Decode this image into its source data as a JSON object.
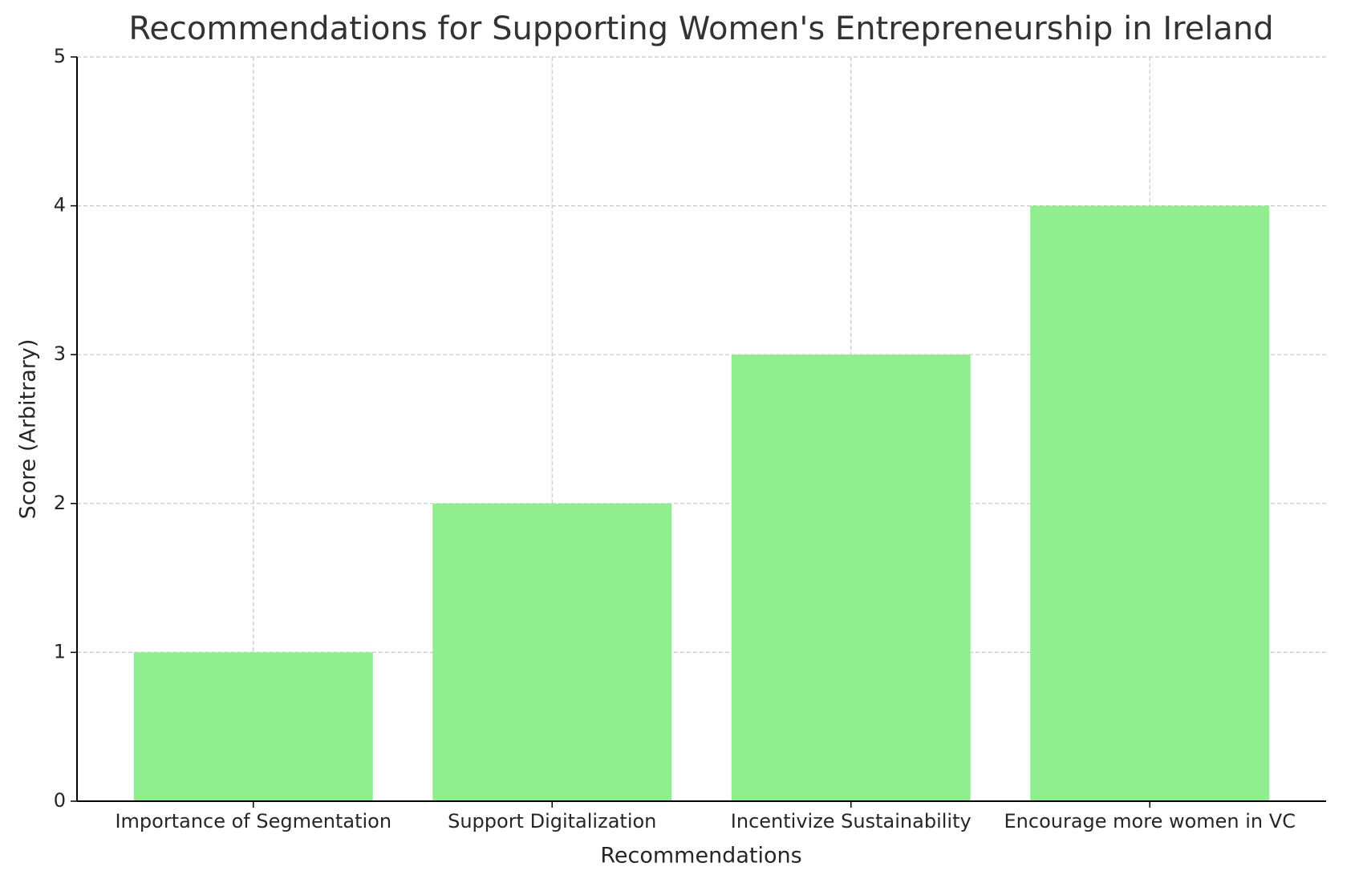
{
  "chart_data": {
    "type": "bar",
    "title": "Recommendations for Supporting Women's Entrepreneurship in Ireland",
    "x_label": "Recommendations",
    "y_label": "Score (Arbitrary)",
    "categories": [
      "Importance of Segmentation",
      "Support Digitalization",
      "Incentivize Sustainability",
      "Encourage more women in VC"
    ],
    "values": [
      1,
      2,
      3,
      4
    ],
    "color": "#90ee90",
    "ylim": [
      0,
      5
    ],
    "yticks": [
      0,
      1,
      2,
      3,
      4,
      5
    ],
    "grid": true
  }
}
